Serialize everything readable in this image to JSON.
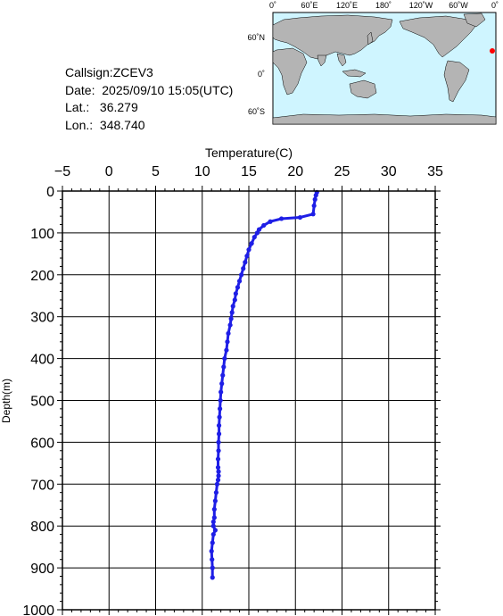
{
  "station": {
    "callsign_label": "Callsign:",
    "callsign": "ZCEV3",
    "date_label": "Date:",
    "date": "2025/09/10 15:05(UTC)",
    "lat_label": "Lat.:",
    "lat": "36.279",
    "lon_label": "Lon.:",
    "lon": "348.740"
  },
  "map": {
    "top_labels": [
      "0˚",
      "60˚E",
      "120˚E",
      "180˚",
      "120˚W",
      "60˚W",
      "0˚"
    ],
    "left_labels": [
      "60˚N",
      "0˚",
      "60˚S"
    ],
    "ocean_color": "#cff5ff",
    "land_color": "#b4b4b4",
    "marker_color": "#ff0000"
  },
  "chart_data": {
    "type": "scatter",
    "title": "",
    "xlabel": "Temperature(C)",
    "ylabel": "Depth(m)",
    "xlim": [
      -5,
      35
    ],
    "ylim": [
      0,
      1000
    ],
    "y_inverted": true,
    "x_axis_position": "top",
    "x_ticks": [
      -5,
      0,
      5,
      10,
      15,
      20,
      25,
      30,
      35
    ],
    "y_ticks": [
      0,
      100,
      200,
      300,
      400,
      500,
      600,
      700,
      800,
      900,
      1000
    ],
    "grid": true,
    "series_color": "#1e1ee6",
    "x": [
      22.3,
      22.2,
      22.1,
      22.0,
      21.9,
      20.5,
      18.5,
      17.3,
      16.6,
      16.1,
      15.9,
      15.6,
      15.3,
      15.0,
      14.8,
      14.6,
      14.4,
      14.2,
      14.0,
      13.8,
      13.6,
      13.5,
      13.3,
      13.2,
      13.1,
      13.0,
      12.8,
      12.7,
      12.6,
      12.4,
      12.3,
      12.2,
      12.1,
      12.0,
      11.95,
      11.9,
      11.85,
      11.8,
      11.8,
      11.75,
      11.75,
      11.7,
      11.7,
      11.75,
      11.75,
      11.7,
      11.6,
      11.5,
      11.4,
      11.3,
      11.3,
      11.2,
      11.2,
      11.4,
      11.2,
      11.1,
      11.0,
      11.05,
      11.1,
      11.1
    ],
    "y": [
      3,
      10,
      20,
      35,
      55,
      63,
      66,
      73,
      82,
      92,
      100,
      110,
      125,
      140,
      155,
      170,
      185,
      200,
      215,
      230,
      245,
      260,
      275,
      290,
      305,
      320,
      340,
      360,
      380,
      400,
      420,
      440,
      460,
      480,
      500,
      520,
      540,
      560,
      580,
      600,
      620,
      640,
      660,
      670,
      680,
      690,
      700,
      720,
      740,
      760,
      780,
      790,
      800,
      810,
      820,
      840,
      860,
      880,
      900,
      923
    ]
  }
}
